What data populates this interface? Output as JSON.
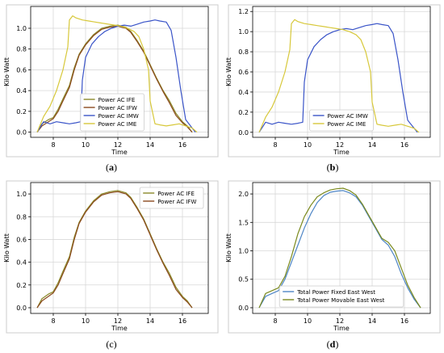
{
  "figure": {
    "panels": [
      {
        "id": "a",
        "caption_open": "(",
        "caption_letter": "a",
        "caption_close": ")",
        "caption_bold": true
      },
      {
        "id": "b",
        "caption_open": "(",
        "caption_letter": "b",
        "caption_close": ")",
        "caption_bold": true
      },
      {
        "id": "c",
        "caption_open": "(",
        "caption_letter": "c",
        "caption_close": ")",
        "caption_bold": false
      },
      {
        "id": "d",
        "caption_open": "(",
        "caption_letter": "d",
        "caption_close": ")",
        "caption_bold": true
      }
    ]
  },
  "colors": {
    "IFE": "#8b8a2a",
    "IFW": "#8b4a1e",
    "IMW": "#3a54c8",
    "IME": "#d7c83a",
    "fixed_ew": "#4f86c6",
    "movable_ew": "#7b8a1e",
    "grid": "#d8d8d8",
    "axis": "#000000"
  },
  "chart_data": [
    {
      "id": "a",
      "type": "line",
      "title": "",
      "xlabel": "Time",
      "ylabel": "Kilo Watt",
      "xlim": [
        6.6,
        17.6
      ],
      "ylim": [
        -0.05,
        1.21
      ],
      "xticks": [
        8,
        10,
        12,
        14,
        16
      ],
      "yticks": [
        0.0,
        0.2,
        0.4,
        0.6,
        0.8,
        1.0
      ],
      "grid": true,
      "legend_position": "lower-left-center",
      "series": [
        {
          "name": "Power AC IFE",
          "color_key": "IFE",
          "x": [
            7.0,
            7.3,
            7.7,
            8.0,
            8.3,
            8.6,
            9.0,
            9.3,
            9.6,
            10.0,
            10.5,
            11.0,
            11.5,
            12.0,
            12.5,
            12.8,
            13.2,
            13.6,
            14.0,
            14.4,
            14.8,
            15.2,
            15.6,
            16.0,
            16.3,
            16.6
          ],
          "y": [
            0.0,
            0.08,
            0.12,
            0.14,
            0.22,
            0.32,
            0.45,
            0.62,
            0.75,
            0.85,
            0.94,
            1.0,
            1.02,
            1.03,
            1.01,
            0.97,
            0.88,
            0.78,
            0.65,
            0.52,
            0.4,
            0.3,
            0.18,
            0.1,
            0.06,
            0.0
          ]
        },
        {
          "name": "Power AC IFW",
          "color_key": "IFW",
          "x": [
            7.0,
            7.3,
            7.7,
            8.0,
            8.3,
            8.6,
            9.0,
            9.3,
            9.6,
            10.0,
            10.5,
            11.0,
            11.5,
            12.0,
            12.5,
            12.8,
            13.2,
            13.6,
            14.0,
            14.4,
            14.8,
            15.2,
            15.6,
            16.0,
            16.3,
            16.6
          ],
          "y": [
            0.0,
            0.06,
            0.1,
            0.13,
            0.2,
            0.3,
            0.43,
            0.6,
            0.74,
            0.84,
            0.93,
            0.99,
            1.01,
            1.02,
            1.0,
            0.96,
            0.87,
            0.77,
            0.64,
            0.51,
            0.39,
            0.28,
            0.16,
            0.09,
            0.05,
            0.0
          ]
        },
        {
          "name": "Power AC IMW",
          "color_key": "IMW",
          "x": [
            7.0,
            7.4,
            7.8,
            8.2,
            8.6,
            9.0,
            9.4,
            9.7,
            9.8,
            10.0,
            10.4,
            10.8,
            11.2,
            11.6,
            12.0,
            12.4,
            12.8,
            13.2,
            13.6,
            14.0,
            14.3,
            14.6,
            15.0,
            15.3,
            15.6,
            15.9,
            16.2,
            16.5,
            16.8
          ],
          "y": [
            0.0,
            0.1,
            0.08,
            0.1,
            0.09,
            0.08,
            0.09,
            0.1,
            0.5,
            0.72,
            0.85,
            0.92,
            0.97,
            1.0,
            1.02,
            1.03,
            1.02,
            1.04,
            1.06,
            1.07,
            1.08,
            1.07,
            1.06,
            0.98,
            0.72,
            0.4,
            0.12,
            0.06,
            0.0
          ]
        },
        {
          "name": "Power AC IME",
          "color_key": "IME",
          "x": [
            7.0,
            7.4,
            7.8,
            8.2,
            8.6,
            8.9,
            9.0,
            9.2,
            9.4,
            9.8,
            10.2,
            10.6,
            11.0,
            11.4,
            11.8,
            12.2,
            12.6,
            13.0,
            13.3,
            13.6,
            13.9,
            14.0,
            14.3,
            14.6,
            15.0,
            15.4,
            15.8,
            16.2,
            16.6,
            16.9
          ],
          "y": [
            0.0,
            0.15,
            0.25,
            0.4,
            0.6,
            0.82,
            1.08,
            1.12,
            1.1,
            1.08,
            1.07,
            1.06,
            1.05,
            1.04,
            1.03,
            1.02,
            1.0,
            0.97,
            0.92,
            0.8,
            0.6,
            0.3,
            0.08,
            0.07,
            0.06,
            0.07,
            0.08,
            0.06,
            0.04,
            0.0
          ]
        }
      ]
    },
    {
      "id": "b",
      "type": "line",
      "title": "",
      "xlabel": "Time",
      "ylabel": "Kilo Watt",
      "xlim": [
        6.6,
        17.6
      ],
      "ylim": [
        -0.05,
        1.25
      ],
      "xticks": [
        8,
        10,
        12,
        14,
        16
      ],
      "yticks": [
        0.0,
        0.2,
        0.4,
        0.6,
        0.8,
        1.0,
        1.2
      ],
      "grid": true,
      "legend_position": "lower-center",
      "series": [
        {
          "name": "Power AC IMW",
          "color_key": "IMW",
          "x": [
            7.0,
            7.4,
            7.8,
            8.2,
            8.6,
            9.0,
            9.4,
            9.7,
            9.8,
            10.0,
            10.4,
            10.8,
            11.2,
            11.6,
            12.0,
            12.4,
            12.8,
            13.2,
            13.6,
            14.0,
            14.3,
            14.6,
            15.0,
            15.3,
            15.6,
            15.9,
            16.2,
            16.5,
            16.8
          ],
          "y": [
            0.0,
            0.1,
            0.08,
            0.1,
            0.09,
            0.08,
            0.09,
            0.1,
            0.5,
            0.72,
            0.85,
            0.92,
            0.97,
            1.0,
            1.02,
            1.03,
            1.02,
            1.04,
            1.06,
            1.07,
            1.08,
            1.07,
            1.06,
            0.98,
            0.72,
            0.4,
            0.12,
            0.06,
            0.0
          ]
        },
        {
          "name": "Power AC IME",
          "color_key": "IME",
          "x": [
            7.0,
            7.4,
            7.8,
            8.2,
            8.6,
            8.9,
            9.0,
            9.2,
            9.4,
            9.8,
            10.2,
            10.6,
            11.0,
            11.4,
            11.8,
            12.2,
            12.6,
            13.0,
            13.3,
            13.6,
            13.9,
            14.0,
            14.3,
            14.6,
            15.0,
            15.4,
            15.8,
            16.2,
            16.6,
            16.9
          ],
          "y": [
            0.0,
            0.15,
            0.25,
            0.4,
            0.6,
            0.82,
            1.08,
            1.12,
            1.1,
            1.08,
            1.07,
            1.06,
            1.05,
            1.04,
            1.03,
            1.02,
            1.0,
            0.97,
            0.92,
            0.8,
            0.6,
            0.3,
            0.08,
            0.07,
            0.06,
            0.07,
            0.08,
            0.06,
            0.04,
            0.0
          ]
        }
      ]
    },
    {
      "id": "c",
      "type": "line",
      "title": "",
      "xlabel": "Time",
      "ylabel": "Kilo Watt",
      "xlim": [
        6.6,
        17.6
      ],
      "ylim": [
        -0.05,
        1.1
      ],
      "xticks": [
        8,
        10,
        12,
        14,
        16
      ],
      "yticks": [
        0.0,
        0.2,
        0.4,
        0.6,
        0.8,
        1.0
      ],
      "grid": true,
      "legend_position": "upper-right",
      "series": [
        {
          "name": "Power AC IFE",
          "color_key": "IFE",
          "x": [
            7.0,
            7.3,
            7.7,
            8.0,
            8.3,
            8.6,
            9.0,
            9.3,
            9.6,
            10.0,
            10.5,
            11.0,
            11.5,
            12.0,
            12.5,
            12.8,
            13.2,
            13.6,
            14.0,
            14.4,
            14.8,
            15.2,
            15.6,
            16.0,
            16.3,
            16.6
          ],
          "y": [
            0.0,
            0.08,
            0.12,
            0.14,
            0.22,
            0.32,
            0.45,
            0.62,
            0.75,
            0.85,
            0.94,
            1.0,
            1.02,
            1.03,
            1.01,
            0.97,
            0.88,
            0.78,
            0.65,
            0.52,
            0.4,
            0.3,
            0.18,
            0.1,
            0.06,
            0.0
          ]
        },
        {
          "name": "Power AC IFW",
          "color_key": "IFW",
          "x": [
            7.0,
            7.3,
            7.7,
            8.0,
            8.3,
            8.6,
            9.0,
            9.3,
            9.6,
            10.0,
            10.5,
            11.0,
            11.5,
            12.0,
            12.5,
            12.8,
            13.2,
            13.6,
            14.0,
            14.4,
            14.8,
            15.2,
            15.6,
            16.0,
            16.3,
            16.6
          ],
          "y": [
            0.0,
            0.06,
            0.1,
            0.13,
            0.2,
            0.3,
            0.43,
            0.6,
            0.74,
            0.84,
            0.93,
            0.99,
            1.01,
            1.02,
            1.0,
            0.96,
            0.87,
            0.77,
            0.64,
            0.51,
            0.39,
            0.28,
            0.16,
            0.09,
            0.05,
            0.0
          ]
        }
      ]
    },
    {
      "id": "d",
      "type": "line",
      "title": "",
      "xlabel": "Time",
      "ylabel": "Kilo Watt",
      "xlim": [
        6.6,
        17.6
      ],
      "ylim": [
        -0.1,
        2.2
      ],
      "xticks": [
        8,
        10,
        12,
        14,
        16
      ],
      "yticks": [
        0.0,
        0.5,
        1.0,
        1.5,
        2.0
      ],
      "grid": true,
      "legend_position": "lower-center",
      "series": [
        {
          "name": "Total Power Fixed East West",
          "color_key": "fixed_ew",
          "x": [
            7.0,
            7.4,
            7.8,
            8.2,
            8.6,
            9.0,
            9.4,
            9.8,
            10.2,
            10.6,
            11.0,
            11.4,
            11.8,
            12.2,
            12.6,
            13.0,
            13.4,
            13.8,
            14.2,
            14.6,
            15.0,
            15.4,
            15.8,
            16.2,
            16.6,
            17.0
          ],
          "y": [
            0.0,
            0.2,
            0.25,
            0.3,
            0.5,
            0.8,
            1.1,
            1.4,
            1.65,
            1.85,
            1.97,
            2.03,
            2.05,
            2.06,
            2.02,
            1.95,
            1.8,
            1.6,
            1.4,
            1.2,
            1.1,
            0.9,
            0.6,
            0.35,
            0.15,
            0.0
          ]
        },
        {
          "name": "Total Power Movable East West",
          "color_key": "movable_ew",
          "x": [
            7.0,
            7.4,
            7.8,
            8.2,
            8.6,
            9.0,
            9.4,
            9.8,
            10.2,
            10.6,
            11.0,
            11.4,
            11.8,
            12.2,
            12.6,
            13.0,
            13.4,
            13.8,
            14.2,
            14.6,
            15.0,
            15.4,
            15.8,
            16.2,
            16.6,
            17.0
          ],
          "y": [
            0.0,
            0.25,
            0.3,
            0.35,
            0.55,
            0.9,
            1.3,
            1.6,
            1.8,
            1.95,
            2.02,
            2.07,
            2.09,
            2.1,
            2.06,
            1.98,
            1.82,
            1.62,
            1.42,
            1.22,
            1.15,
            1.0,
            0.7,
            0.4,
            0.18,
            0.0
          ]
        }
      ]
    }
  ]
}
